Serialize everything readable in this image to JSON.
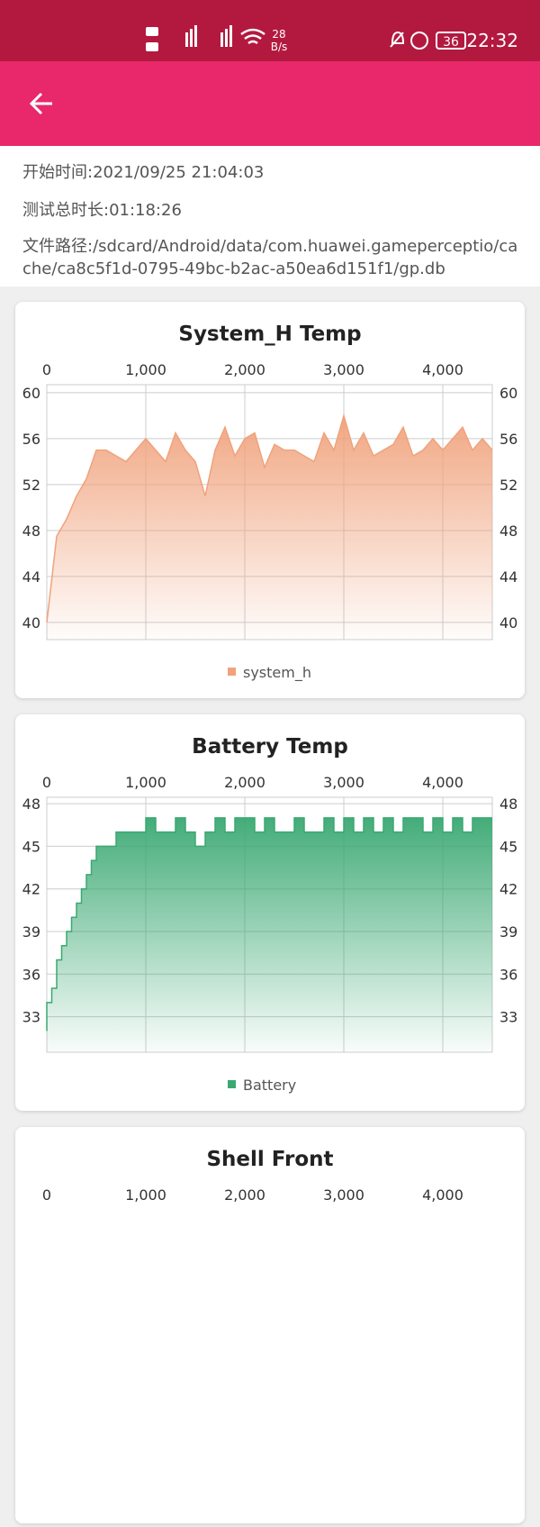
{
  "status_bar": {
    "net_speed": "28",
    "net_unit": "B/s",
    "battery": "36",
    "time": "22:32"
  },
  "info": {
    "start_time": "开始时间:2021/09/25 21:04:03",
    "duration": "测试总时长:01:18:26",
    "path": "文件路径:/sdcard/Android/data/com.huawei.gameperceptio/cache/ca8c5f1d-0795-49bc-b2ac-a50ea6d151f1/gp.db"
  },
  "chart_data": [
    {
      "type": "area",
      "title": "System_H Temp",
      "xlim": [
        0,
        4500
      ],
      "xticks": [
        0,
        {
          "value": 1000,
          "label": "1,000"
        },
        {
          "value": 2000,
          "label": "2,000"
        },
        {
          "value": 3000,
          "label": "3,000"
        },
        {
          "value": 4000,
          "label": "4,000"
        }
      ],
      "ylim": [
        38.5,
        60.7
      ],
      "yticks": [
        40,
        44,
        48,
        52,
        56,
        60
      ],
      "grid": true,
      "x": [
        0,
        100,
        200,
        300,
        400,
        500,
        600,
        700,
        800,
        900,
        1000,
        1100,
        1200,
        1300,
        1400,
        1500,
        1600,
        1700,
        1800,
        1900,
        2000,
        2100,
        2200,
        2300,
        2400,
        2500,
        2600,
        2700,
        2800,
        2900,
        3000,
        3100,
        3200,
        3300,
        3400,
        3500,
        3600,
        3700,
        3800,
        3900,
        4000,
        4100,
        4200,
        4300,
        4400,
        4500
      ],
      "series": [
        {
          "name": "system_h",
          "color": "#f0a27c",
          "values": [
            40,
            47.5,
            49,
            51,
            52.5,
            55,
            55,
            54.5,
            54,
            55,
            56,
            55,
            54,
            56.5,
            55,
            54,
            51,
            55,
            57,
            54.5,
            56,
            56.5,
            53.5,
            55.5,
            55,
            55,
            54.5,
            54,
            56.5,
            55,
            58,
            55,
            56.5,
            54.5,
            55,
            55.5,
            57,
            54.5,
            55,
            56,
            55,
            56,
            57,
            55,
            56,
            55
          ]
        }
      ]
    },
    {
      "type": "area",
      "step": true,
      "title": "Battery Temp",
      "xlim": [
        0,
        4500
      ],
      "xticks": [
        0,
        {
          "value": 1000,
          "label": "1,000"
        },
        {
          "value": 2000,
          "label": "2,000"
        },
        {
          "value": 3000,
          "label": "3,000"
        },
        {
          "value": 4000,
          "label": "4,000"
        }
      ],
      "ylim": [
        30.5,
        48.45
      ],
      "yticks": [
        33,
        36,
        39,
        42,
        45,
        48
      ],
      "grid": true,
      "x": [
        0,
        50,
        100,
        150,
        200,
        250,
        300,
        350,
        400,
        450,
        500,
        600,
        700,
        800,
        900,
        1000,
        1100,
        1200,
        1300,
        1400,
        1500,
        1600,
        1700,
        1800,
        1900,
        2000,
        2100,
        2200,
        2300,
        2400,
        2500,
        2600,
        2700,
        2800,
        2900,
        3000,
        3100,
        3200,
        3300,
        3400,
        3500,
        3600,
        3700,
        3800,
        3900,
        4000,
        4100,
        4200,
        4300,
        4400,
        4500
      ],
      "series": [
        {
          "name": "Battery",
          "color": "#3aa872",
          "values": [
            32,
            34,
            35,
            37,
            38,
            39,
            40,
            41,
            42,
            43,
            44,
            45,
            45,
            46,
            46,
            46,
            47,
            46,
            46,
            47,
            46,
            45,
            46,
            47,
            46,
            47,
            47,
            46,
            47,
            46,
            46,
            47,
            46,
            46,
            47,
            46,
            47,
            46,
            47,
            46,
            47,
            46,
            47,
            47,
            46,
            47,
            46,
            47,
            46,
            47,
            47
          ]
        }
      ]
    },
    {
      "type": "area",
      "title": "Shell Front",
      "xlim": [
        0,
        4500
      ],
      "xticks": [
        0,
        {
          "value": 1000,
          "label": "1,000"
        },
        {
          "value": 2000,
          "label": "2,000"
        },
        {
          "value": 3000,
          "label": "3,000"
        },
        {
          "value": 4000,
          "label": "4,000"
        }
      ]
    }
  ]
}
